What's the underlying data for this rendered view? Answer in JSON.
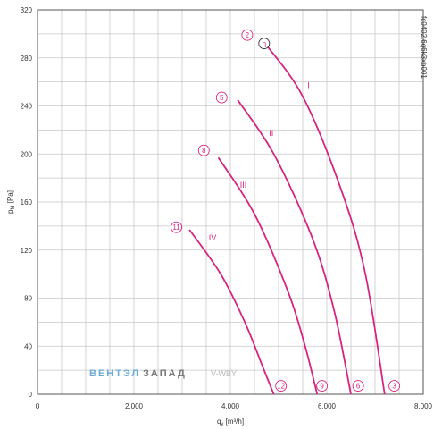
{
  "chart_data": {
    "type": "line",
    "xlabel": "qv [m³/h]",
    "ylabel": "pfd [Pa]",
    "xlim": [
      0,
      8000
    ],
    "ylim": [
      0,
      320
    ],
    "grid": true,
    "x_ticks": [
      "0",
      "2.000",
      "4.000",
      "6.000",
      "8.000"
    ],
    "y_ticks": [
      "0",
      "40",
      "80",
      "120",
      "160",
      "200",
      "240",
      "280",
      "320"
    ],
    "series": [
      {
        "name": "I",
        "points": [
          [
            4700,
            293
          ],
          [
            5500,
            248
          ],
          [
            6300,
            170
          ],
          [
            6800,
            100
          ],
          [
            7200,
            0
          ]
        ]
      },
      {
        "name": "II",
        "points": [
          [
            4150,
            245
          ],
          [
            4900,
            200
          ],
          [
            5700,
            130
          ],
          [
            6150,
            70
          ],
          [
            6500,
            0
          ]
        ]
      },
      {
        "name": "III",
        "points": [
          [
            3750,
            197
          ],
          [
            4500,
            150
          ],
          [
            5200,
            85
          ],
          [
            5550,
            40
          ],
          [
            5800,
            0
          ]
        ]
      },
      {
        "name": "IV",
        "points": [
          [
            3150,
            137
          ],
          [
            3800,
            100
          ],
          [
            4300,
            60
          ],
          [
            4650,
            25
          ],
          [
            4900,
            0
          ]
        ]
      }
    ],
    "markers": [
      {
        "label": "2",
        "x": 4350,
        "y": 299
      },
      {
        "label": "η",
        "x": 4700,
        "y": 292
      },
      {
        "label": "5",
        "x": 3820,
        "y": 247
      },
      {
        "label": "8",
        "x": 3450,
        "y": 203
      },
      {
        "label": "11",
        "x": 2880,
        "y": 139
      },
      {
        "label": "12",
        "x": 5050,
        "y": 7
      },
      {
        "label": "9",
        "x": 5900,
        "y": 7
      },
      {
        "label": "6",
        "x": 6650,
        "y": 7
      },
      {
        "label": "3",
        "x": 7400,
        "y": 7
      }
    ],
    "curve_labels": [
      {
        "label": "I",
        "x": 5600,
        "y": 255
      },
      {
        "label": "II",
        "x": 4800,
        "y": 215
      },
      {
        "label": "III",
        "x": 4200,
        "y": 172
      },
      {
        "label": "IV",
        "x": 3550,
        "y": 128
      }
    ]
  },
  "watermark": {
    "part1": "ВЕНТЭЛ",
    "part2": "ЗАПАД",
    "part3": "V-WBY"
  },
  "side_id": "fc0402.6q6k3xb001",
  "colors": {
    "curve": "#d6247f",
    "grid": "#c8c8c8",
    "axis": "#555555"
  }
}
